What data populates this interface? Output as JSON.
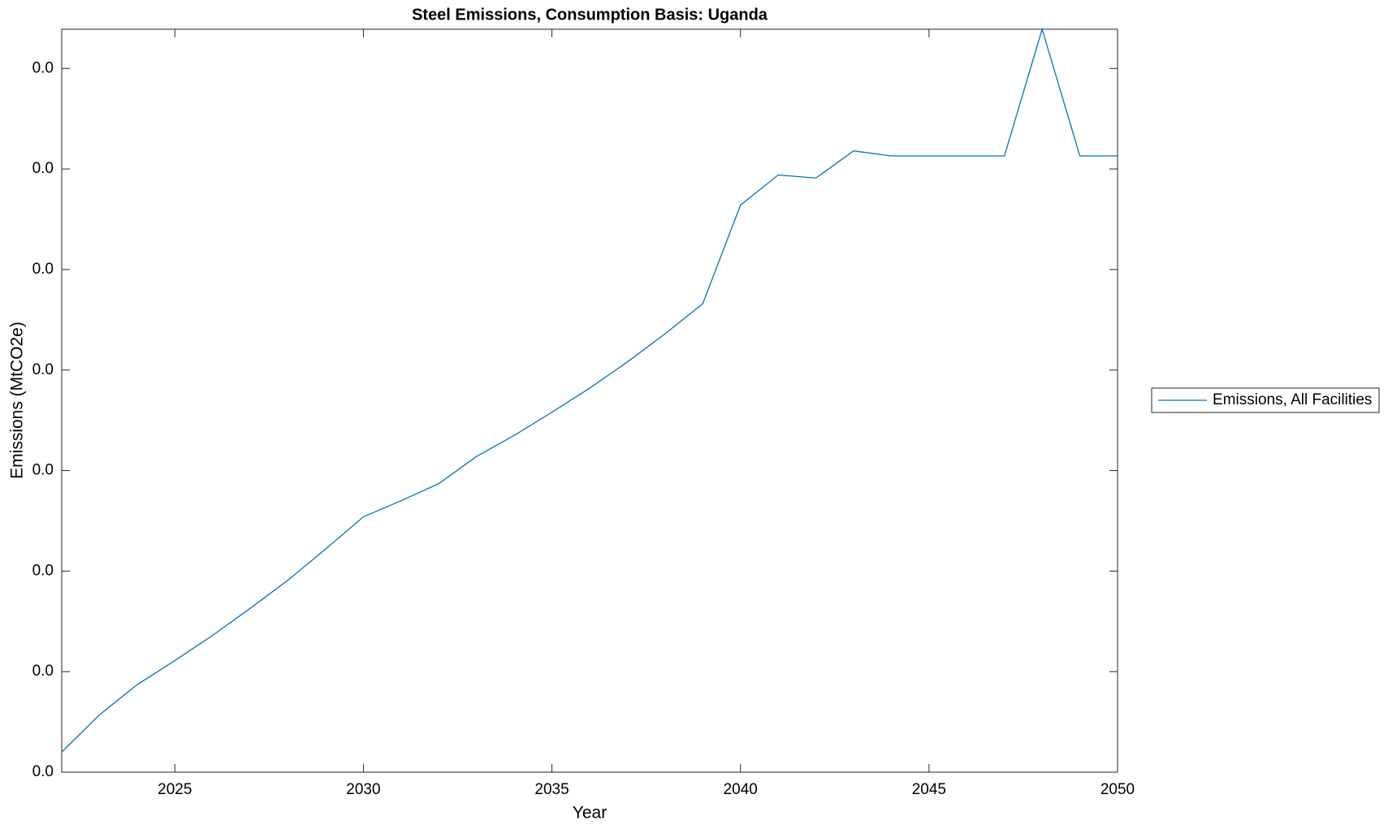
{
  "chart_data": {
    "type": "line",
    "title": "Steel Emissions, Consumption Basis: Uganda",
    "x_label": "Year",
    "y_label": "Emissions (MtCO2e)",
    "x": [
      2022,
      2023,
      2024,
      2025,
      2026,
      2027,
      2028,
      2029,
      2030,
      2031,
      2032,
      2033,
      2034,
      2035,
      2036,
      2037,
      2038,
      2039,
      2040,
      2041,
      2042,
      2043,
      2044,
      2045,
      2046,
      2047,
      2048,
      2049,
      2050
    ],
    "series": [
      {
        "name": "Emissions, All Facilities",
        "color": "#0072bd",
        "values": [
          0.002,
          0.0057,
          0.0087,
          0.0111,
          0.0136,
          0.0163,
          0.0191,
          0.0222,
          0.0254,
          0.027,
          0.0287,
          0.0314,
          0.0335,
          0.0358,
          0.0382,
          0.0408,
          0.0436,
          0.0466,
          0.0564,
          0.0594,
          0.0591,
          0.0618,
          0.0613,
          0.0613,
          0.0613,
          0.0613,
          0.0739,
          0.0613,
          0.0613
        ]
      }
    ],
    "xlim": [
      2022,
      2050
    ],
    "xticks": [
      2025,
      2030,
      2035,
      2040,
      2045,
      2050
    ],
    "ylim": [
      0,
      0.0739
    ],
    "yticks": [
      {
        "value": 0,
        "label": "0.0"
      },
      {
        "value": 0.01,
        "label": "0.0"
      },
      {
        "value": 0.02,
        "label": "0.0"
      },
      {
        "value": 0.03,
        "label": "0.0"
      },
      {
        "value": 0.04,
        "label": "0.0"
      },
      {
        "value": 0.05,
        "label": "0.0"
      },
      {
        "value": 0.06,
        "label": "0.0"
      },
      {
        "value": 0.07,
        "label": "0.0"
      }
    ],
    "grid": false,
    "legend": "right"
  }
}
